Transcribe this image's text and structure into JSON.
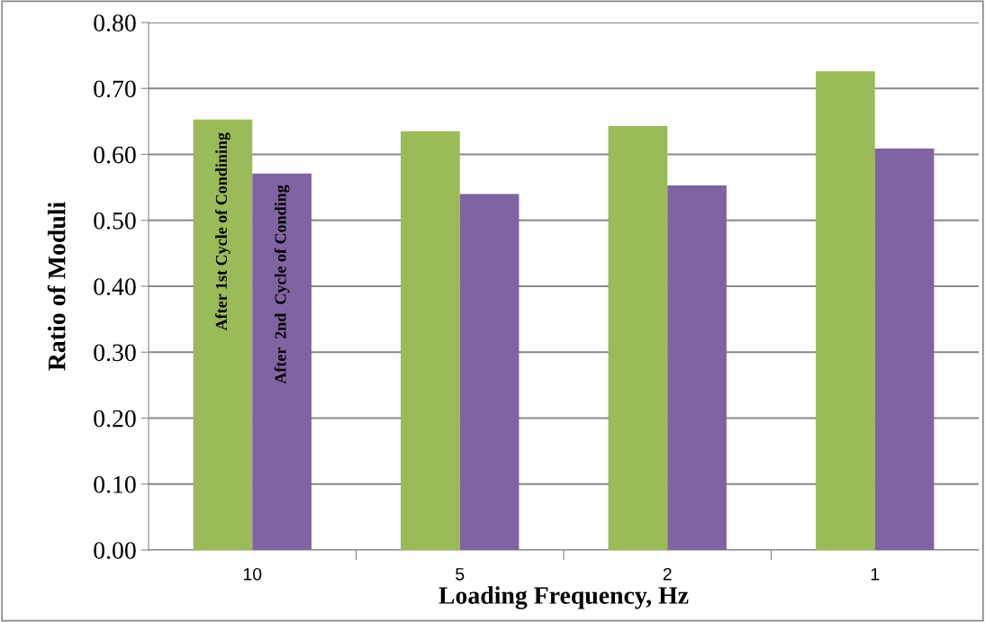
{
  "chart_data": {
    "type": "bar",
    "xlabel": "Loading Frequency, Hz",
    "ylabel": "Ratio of Moduli",
    "categories": [
      "10",
      "5",
      "2",
      "1"
    ],
    "series": [
      {
        "name": "After 1st Cycle of Condining",
        "color": "#9bbb59",
        "values": [
          0.653,
          0.635,
          0.643,
          0.726
        ]
      },
      {
        "name": "After  2nd  Cycle of Conding",
        "color": "#8064a2",
        "values": [
          0.571,
          0.54,
          0.553,
          0.609
        ]
      }
    ],
    "ylim": [
      0,
      0.8
    ],
    "yticks": [
      {
        "value": 0,
        "label": "0.00"
      },
      {
        "value": 0.1,
        "label": "0.10"
      },
      {
        "value": 0.2,
        "label": "0.20"
      },
      {
        "value": 0.3,
        "label": "0.30"
      },
      {
        "value": 0.4,
        "label": "0.40"
      },
      {
        "value": 0.5,
        "label": "0.50"
      },
      {
        "value": 0.6,
        "label": "0.60"
      },
      {
        "value": 0.7,
        "label": "0.70"
      },
      {
        "value": 0.8,
        "label": "0.80"
      }
    ],
    "grid": "y",
    "legend": false
  }
}
